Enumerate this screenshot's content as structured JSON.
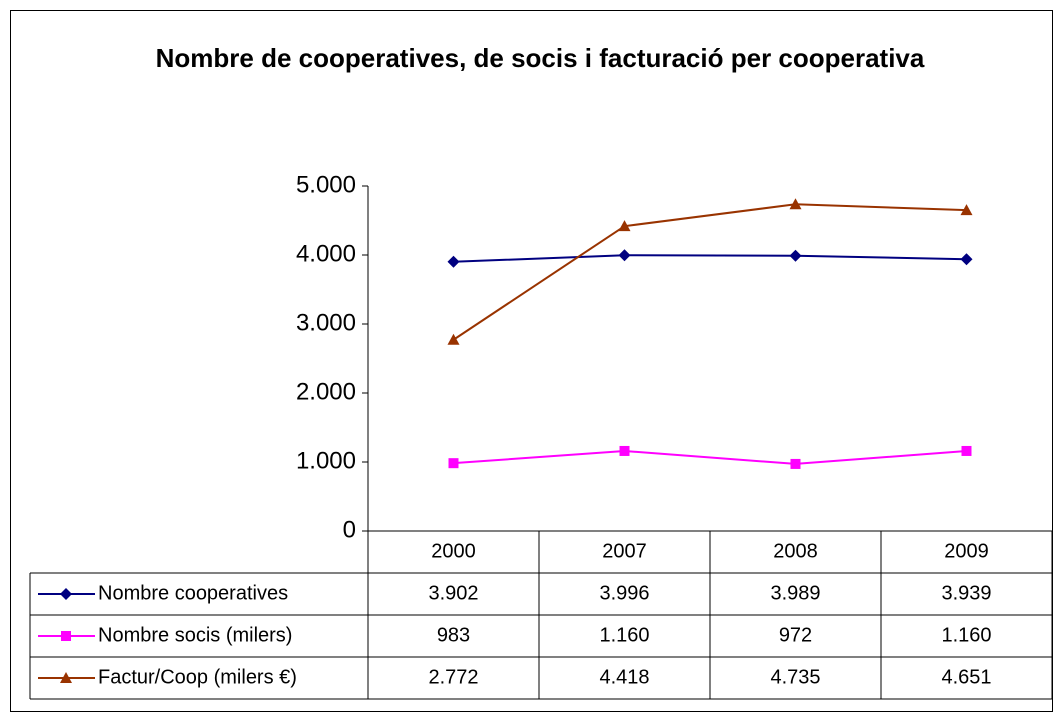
{
  "chart_data": {
    "type": "line",
    "title": "Nombre de cooperatives, de socis i facturació per cooperativa",
    "categories": [
      "2000",
      "2007",
      "2008",
      "2009"
    ],
    "series": [
      {
        "name": "Nombre cooperatives",
        "color": "#000080",
        "marker": "diamond",
        "values": [
          3902,
          3996,
          3989,
          3939
        ],
        "value_labels": [
          "3.902",
          "3.996",
          "3.989",
          "3.939"
        ]
      },
      {
        "name": "Nombre socis (milers)",
        "color": "#ff00ff",
        "marker": "square",
        "values": [
          983,
          1160,
          972,
          1160
        ],
        "value_labels": [
          "983",
          "1.160",
          "972",
          "1.160"
        ]
      },
      {
        "name": "Factur/Coop (milers €)",
        "color": "#993300",
        "marker": "triangle",
        "values": [
          2772,
          4418,
          4735,
          4651
        ],
        "value_labels": [
          "2.772",
          "4.418",
          "4.735",
          "4.651"
        ]
      }
    ],
    "ylim": [
      0,
      5000
    ],
    "yticks": [
      0,
      {
        "value": 1000,
        "label": "1.000"
      },
      {
        "value": 2000,
        "label": "2.000"
      },
      {
        "value": 3000,
        "label": "3.000"
      },
      {
        "value": 4000,
        "label": "4.000"
      },
      {
        "value": 5000,
        "label": "5.000"
      }
    ],
    "grid": false
  }
}
